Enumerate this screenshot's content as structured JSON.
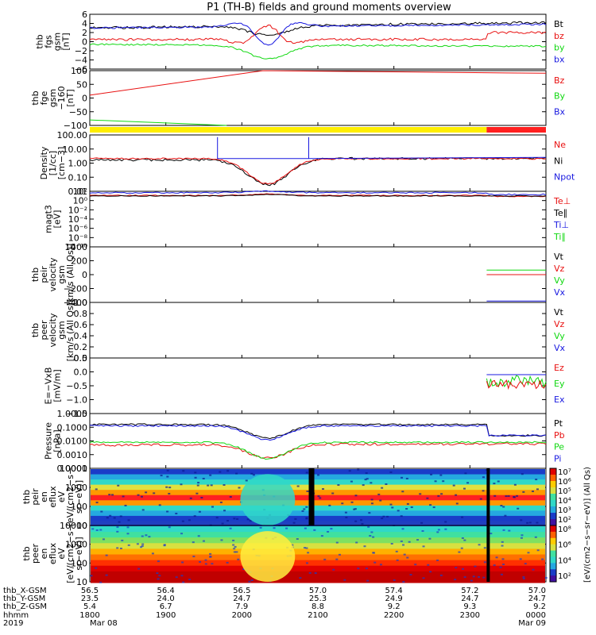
{
  "colors": {
    "black": "#000000",
    "red": "#e81010",
    "green": "#10d810",
    "blue": "#1818e0",
    "yellow": "#ffee00",
    "bar_red": "#ff2020"
  },
  "chart_data": {
    "type": "line",
    "title": "P1 (TH-B) fields and ground moments overview",
    "x_time_ticks": [
      "1800",
      "1900",
      "2000",
      "2100",
      "2200",
      "2300",
      "0000"
    ],
    "x_range": [
      "2019-03-08 18:00",
      "2019-03-09 00:00"
    ],
    "ephemeris": {
      "labels": [
        "thb_X-GSM",
        "thb_Y-GSM",
        "thb_Z-GSM",
        "hhmm",
        "2019"
      ],
      "x_gsm": [
        "56.5",
        "56.4",
        "56.5",
        "57.0",
        "57.4",
        "57.2",
        "57.0"
      ],
      "y_gsm": [
        "23.5",
        "24.0",
        "24.7",
        "25.3",
        "24.9",
        "24.7",
        "24.7"
      ],
      "z_gsm": [
        "5.4",
        "6.7",
        "7.9",
        "8.8",
        "9.2",
        "9.3",
        "9.2"
      ],
      "date_start": "Mar 08",
      "date_end": "Mar 09"
    },
    "panels": [
      {
        "id": "fgs",
        "ylabel": [
          "thb",
          "fgs",
          "gsm",
          "[nT]"
        ],
        "ylim": [
          -6,
          6
        ],
        "yticks": [
          "6",
          "4",
          "2",
          "0",
          "−2",
          "−4",
          "−6"
        ],
        "legend": [
          {
            "name": "Bt",
            "color": "black"
          },
          {
            "name": "bz",
            "color": "red"
          },
          {
            "name": "by",
            "color": "green"
          },
          {
            "name": "bx",
            "color": "blue"
          }
        ]
      },
      {
        "id": "fge",
        "ylabel": [
          "thb",
          "fge",
          "gsm",
          "−160",
          "[nT]"
        ],
        "ylim": [
          -150,
          100
        ],
        "yticks": [
          "100",
          "50",
          "0",
          "−50",
          "−100"
        ],
        "legend": [
          {
            "name": "Bz",
            "color": "red"
          },
          {
            "name": "By",
            "color": "green"
          },
          {
            "name": "Bx",
            "color": "blue"
          }
        ]
      },
      {
        "id": "density",
        "ylabel": [
          "Density",
          "[1/cc]",
          "[cm−3]"
        ],
        "scale": "log",
        "ylim": [
          0.01,
          300
        ],
        "yticks": [
          "100.00",
          "10.00",
          "1.00",
          "0.10",
          "0.01"
        ],
        "legend": [
          {
            "name": "Ne",
            "color": "red"
          },
          {
            "name": "Ni",
            "color": "black"
          },
          {
            "name": "Npot",
            "color": "blue"
          }
        ]
      },
      {
        "id": "temperature",
        "ylabel": [
          "magt3",
          "[eV]"
        ],
        "scale": "log",
        "ylim": [
          1e-10,
          100
        ],
        "yticks": [
          "10²",
          "10⁰",
          "10⁻²",
          "10⁻⁴",
          "10⁻⁶",
          "10⁻⁸",
          "10⁻¹⁰"
        ],
        "legend": [
          {
            "name": "Te⊥",
            "color": "red"
          },
          {
            "name": "Te∥",
            "color": "black"
          },
          {
            "name": "Ti⊥",
            "color": "blue"
          },
          {
            "name": "Ti∥",
            "color": "green"
          }
        ]
      },
      {
        "id": "vel_peir",
        "ylabel": [
          "thb",
          "peir",
          "velocity",
          "gsm",
          "[km/s (All Qs)]"
        ],
        "ylim": [
          -400,
          400
        ],
        "yticks": [
          "400",
          "200",
          "0",
          "−200",
          "−400"
        ],
        "legend": [
          {
            "name": "Vt",
            "color": "black"
          },
          {
            "name": "Vz",
            "color": "red"
          },
          {
            "name": "Vy",
            "color": "green"
          },
          {
            "name": "Vx",
            "color": "blue"
          }
        ]
      },
      {
        "id": "vel_peer",
        "ylabel": [
          "thb",
          "peer",
          "velocity",
          "gsm",
          "[km/s (All Qs)]"
        ],
        "ylim": [
          0,
          1
        ],
        "yticks": [
          "1.0",
          "0.8",
          "0.6",
          "0.4",
          "0.2",
          "0.0"
        ],
        "legend": [
          {
            "name": "Vt",
            "color": "black"
          },
          {
            "name": "Vz",
            "color": "red"
          },
          {
            "name": "Vy",
            "color": "green"
          },
          {
            "name": "Vx",
            "color": "blue"
          }
        ]
      },
      {
        "id": "efield",
        "ylabel": [
          "E=−VxB",
          "[mV/m]"
        ],
        "ylim": [
          -1.5,
          0.5
        ],
        "yticks": [
          "0.5",
          "0.0",
          "−0.5",
          "−1.0",
          "−1.5"
        ],
        "legend": [
          {
            "name": "Ez",
            "color": "red"
          },
          {
            "name": "Ey",
            "color": "green"
          },
          {
            "name": "Ex",
            "color": "blue"
          }
        ]
      },
      {
        "id": "pressure",
        "ylabel": [
          "Pressure",
          "[nPa]"
        ],
        "scale": "log",
        "ylim": [
          0.0001,
          1
        ],
        "yticks": [
          "1.0000",
          "0.1000",
          "0.0100",
          "0.0010",
          "0.0001"
        ],
        "legend": [
          {
            "name": "Pt",
            "color": "black"
          },
          {
            "name": "Pb",
            "color": "red"
          },
          {
            "name": "Pe",
            "color": "green"
          },
          {
            "name": "Pi",
            "color": "blue"
          }
        ]
      },
      {
        "id": "peir_spec",
        "ylabel": [
          "thb",
          "peir",
          "en",
          "eflux",
          "eV",
          "[eV/(cm2−s−",
          "sr−eV)]"
        ],
        "scale": "log",
        "yticks": [
          "10000",
          "1000",
          "100",
          "10"
        ],
        "colorbar": {
          "ticks": [
            "10⁷",
            "10⁶",
            "10⁵",
            "10⁴",
            "10³",
            "10²"
          ],
          "label": "[eV/(cm2−s−sr−eV)] (All Qs)"
        }
      },
      {
        "id": "peer_spec",
        "ylabel": [
          "thb",
          "peer",
          "en",
          "eflux",
          "eV",
          "[eV/(cm2−s−",
          "sr−eV)]"
        ],
        "scale": "log",
        "yticks": [
          "10000",
          "1000",
          "100",
          "10"
        ],
        "colorbar": {
          "ticks": [
            "10⁸",
            "10⁶",
            "10⁴",
            "10²"
          ],
          "label": "[eV/(cm2−s−sr−eV)]"
        }
      }
    ]
  }
}
